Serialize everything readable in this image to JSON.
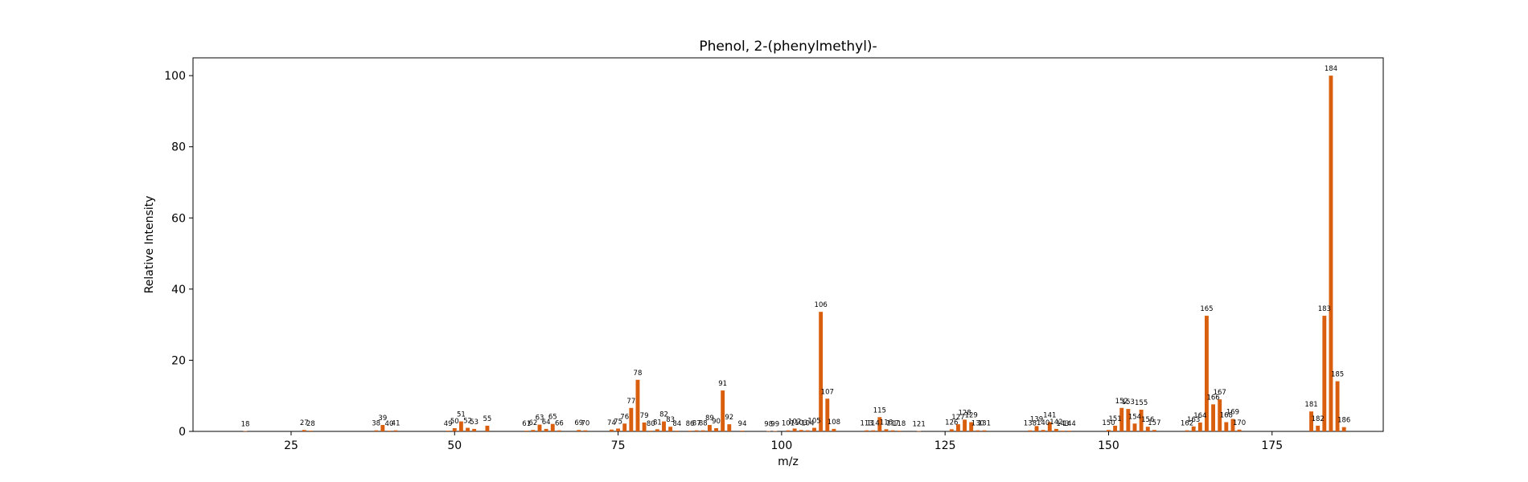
{
  "chart_data": {
    "type": "bar",
    "title": "Phenol, 2-(phenylmethyl)-",
    "xlabel": "m/z",
    "ylabel": "Relative Intensity",
    "xlim": [
      10,
      192
    ],
    "ylim": [
      0,
      105
    ],
    "xticks": [
      25,
      50,
      75,
      100,
      125,
      150,
      175
    ],
    "yticks": [
      0,
      20,
      40,
      60,
      80,
      100
    ],
    "grid": false,
    "bar_color": "#d95f0e",
    "peaks": [
      {
        "mz": 18,
        "intensity": 0.1
      },
      {
        "mz": 27,
        "intensity": 0.4
      },
      {
        "mz": 28,
        "intensity": 0.2
      },
      {
        "mz": 38,
        "intensity": 0.3
      },
      {
        "mz": 39,
        "intensity": 1.8
      },
      {
        "mz": 40,
        "intensity": 0.2
      },
      {
        "mz": 41,
        "intensity": 0.3
      },
      {
        "mz": 49,
        "intensity": 0.2
      },
      {
        "mz": 50,
        "intensity": 0.9
      },
      {
        "mz": 51,
        "intensity": 2.8
      },
      {
        "mz": 52,
        "intensity": 1.0
      },
      {
        "mz": 53,
        "intensity": 0.7
      },
      {
        "mz": 55,
        "intensity": 1.6
      },
      {
        "mz": 61,
        "intensity": 0.2
      },
      {
        "mz": 62,
        "intensity": 0.4
      },
      {
        "mz": 63,
        "intensity": 1.9
      },
      {
        "mz": 64,
        "intensity": 0.7
      },
      {
        "mz": 65,
        "intensity": 2.1
      },
      {
        "mz": 66,
        "intensity": 0.3
      },
      {
        "mz": 69,
        "intensity": 0.4
      },
      {
        "mz": 70,
        "intensity": 0.3
      },
      {
        "mz": 74,
        "intensity": 0.5
      },
      {
        "mz": 75,
        "intensity": 0.8
      },
      {
        "mz": 76,
        "intensity": 2.2
      },
      {
        "mz": 77,
        "intensity": 6.6
      },
      {
        "mz": 78,
        "intensity": 14.5
      },
      {
        "mz": 79,
        "intensity": 2.5
      },
      {
        "mz": 80,
        "intensity": 0.2
      },
      {
        "mz": 81,
        "intensity": 0.6
      },
      {
        "mz": 82,
        "intensity": 2.8
      },
      {
        "mz": 83,
        "intensity": 1.3
      },
      {
        "mz": 84,
        "intensity": 0.2
      },
      {
        "mz": 86,
        "intensity": 0.2
      },
      {
        "mz": 87,
        "intensity": 0.3
      },
      {
        "mz": 88,
        "intensity": 0.3
      },
      {
        "mz": 89,
        "intensity": 1.8
      },
      {
        "mz": 90,
        "intensity": 0.9
      },
      {
        "mz": 91,
        "intensity": 11.5
      },
      {
        "mz": 92,
        "intensity": 2.0
      },
      {
        "mz": 94,
        "intensity": 0.2
      },
      {
        "mz": 98,
        "intensity": 0.1
      },
      {
        "mz": 99,
        "intensity": 0.1
      },
      {
        "mz": 101,
        "intensity": 0.3
      },
      {
        "mz": 102,
        "intensity": 0.8
      },
      {
        "mz": 103,
        "intensity": 0.4
      },
      {
        "mz": 104,
        "intensity": 0.3
      },
      {
        "mz": 105,
        "intensity": 1.0
      },
      {
        "mz": 106,
        "intensity": 33.6
      },
      {
        "mz": 107,
        "intensity": 9.2
      },
      {
        "mz": 108,
        "intensity": 0.7
      },
      {
        "mz": 113,
        "intensity": 0.3
      },
      {
        "mz": 114,
        "intensity": 0.3
      },
      {
        "mz": 115,
        "intensity": 4.0
      },
      {
        "mz": 116,
        "intensity": 0.6
      },
      {
        "mz": 117,
        "intensity": 0.3
      },
      {
        "mz": 118,
        "intensity": 0.2
      },
      {
        "mz": 121,
        "intensity": 0.1
      },
      {
        "mz": 126,
        "intensity": 0.6
      },
      {
        "mz": 127,
        "intensity": 2.0
      },
      {
        "mz": 128,
        "intensity": 3.3
      },
      {
        "mz": 129,
        "intensity": 2.6
      },
      {
        "mz": 130,
        "intensity": 0.3
      },
      {
        "mz": 131,
        "intensity": 0.3
      },
      {
        "mz": 138,
        "intensity": 0.3
      },
      {
        "mz": 139,
        "intensity": 1.5
      },
      {
        "mz": 140,
        "intensity": 0.4
      },
      {
        "mz": 141,
        "intensity": 2.6
      },
      {
        "mz": 142,
        "intensity": 0.7
      },
      {
        "mz": 143,
        "intensity": 0.2
      },
      {
        "mz": 144,
        "intensity": 0.2
      },
      {
        "mz": 150,
        "intensity": 0.4
      },
      {
        "mz": 151,
        "intensity": 1.6
      },
      {
        "mz": 152,
        "intensity": 6.6
      },
      {
        "mz": 153,
        "intensity": 6.3
      },
      {
        "mz": 154,
        "intensity": 2.2
      },
      {
        "mz": 155,
        "intensity": 6.1
      },
      {
        "mz": 156,
        "intensity": 1.3
      },
      {
        "mz": 157,
        "intensity": 0.4
      },
      {
        "mz": 162,
        "intensity": 0.3
      },
      {
        "mz": 163,
        "intensity": 1.4
      },
      {
        "mz": 164,
        "intensity": 2.5
      },
      {
        "mz": 165,
        "intensity": 32.5
      },
      {
        "mz": 166,
        "intensity": 7.6
      },
      {
        "mz": 167,
        "intensity": 9.0
      },
      {
        "mz": 168,
        "intensity": 2.6
      },
      {
        "mz": 169,
        "intensity": 3.5
      },
      {
        "mz": 170,
        "intensity": 0.5
      },
      {
        "mz": 181,
        "intensity": 5.6
      },
      {
        "mz": 182,
        "intensity": 1.6
      },
      {
        "mz": 183,
        "intensity": 32.5
      },
      {
        "mz": 184,
        "intensity": 100
      },
      {
        "mz": 185,
        "intensity": 14.1
      },
      {
        "mz": 186,
        "intensity": 1.2
      }
    ]
  }
}
